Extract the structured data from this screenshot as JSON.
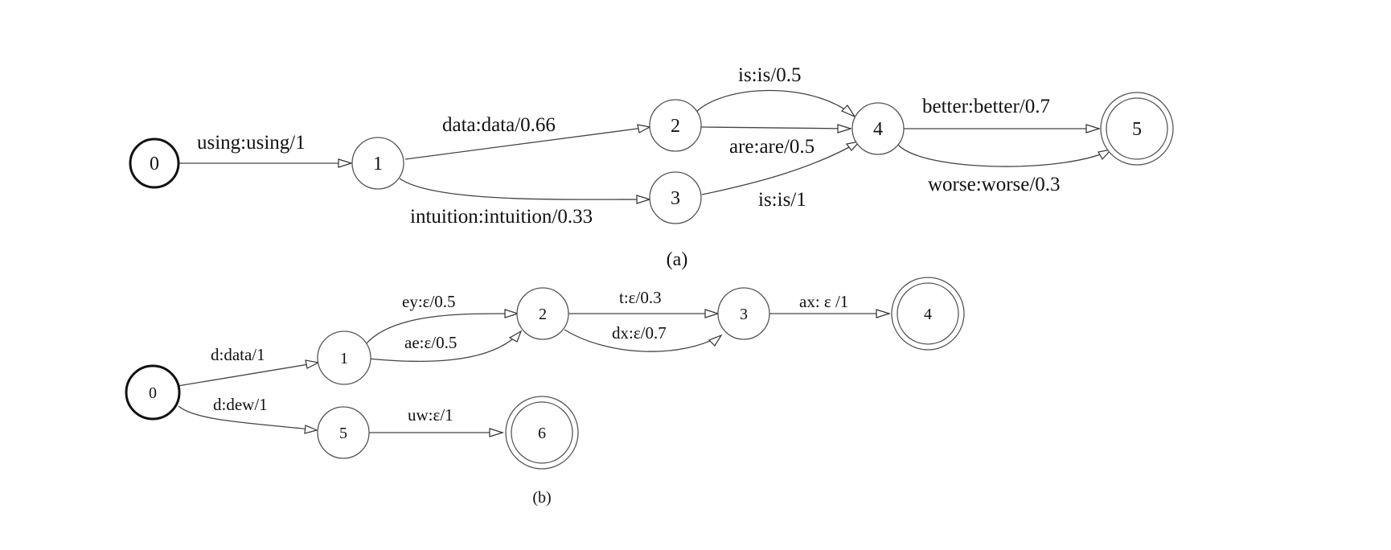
{
  "diagram_a": {
    "caption": "(a)",
    "states": [
      "0",
      "1",
      "2",
      "3",
      "4",
      "5"
    ],
    "edges": [
      {
        "from": "0",
        "to": "1",
        "label": "using:using/1"
      },
      {
        "from": "1",
        "to": "2",
        "label": "data:data/0.66"
      },
      {
        "from": "1",
        "to": "3",
        "label": "intuition:intuition/0.33"
      },
      {
        "from": "2",
        "to": "4",
        "label": "is:is/0.5"
      },
      {
        "from": "2",
        "to": "4",
        "label": "are:are/0.5"
      },
      {
        "from": "3",
        "to": "4",
        "label": "is:is/1"
      },
      {
        "from": "4",
        "to": "5",
        "label": "better:better/0.7"
      },
      {
        "from": "4",
        "to": "5",
        "label": "worse:worse/0.3"
      }
    ]
  },
  "diagram_b": {
    "caption": "(b)",
    "states": [
      "0",
      "1",
      "2",
      "3",
      "4",
      "5",
      "6"
    ],
    "edges": [
      {
        "from": "0",
        "to": "1",
        "label": "d:data/1"
      },
      {
        "from": "0",
        "to": "5",
        "label": "d:dew/1"
      },
      {
        "from": "1",
        "to": "2",
        "label": "ey:ε/0.5"
      },
      {
        "from": "1",
        "to": "2",
        "label": "ae:ε/0.5"
      },
      {
        "from": "2",
        "to": "3",
        "label": "t:ε/0.3"
      },
      {
        "from": "2",
        "to": "3",
        "label": "dx:ε/0.7"
      },
      {
        "from": "3",
        "to": "4",
        "label": "ax: ε /1"
      },
      {
        "from": "5",
        "to": "6",
        "label": "uw:ε/1"
      }
    ]
  }
}
